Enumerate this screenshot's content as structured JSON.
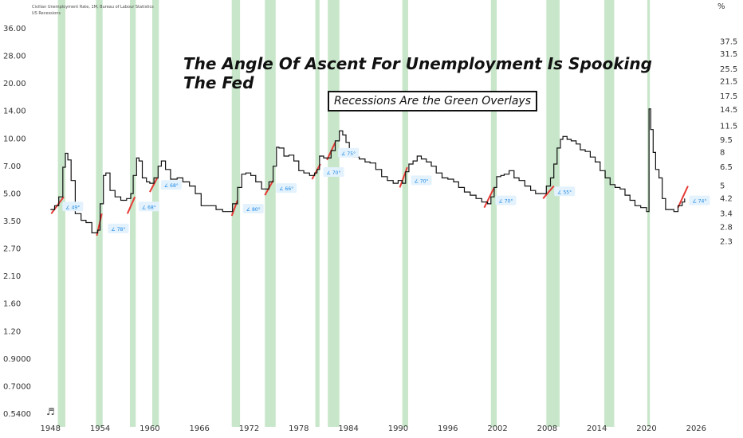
{
  "chart_data": {
    "type": "line",
    "title": "The Angle Of Ascent For Unemployment Is Spooking The Fed",
    "subtitle": "Recessions Are the Green Overlays",
    "legend": [
      "Civilian Unemployment Rate, 1M, Bureau of Labour Statistics",
      "US Recessions"
    ],
    "scale": "log",
    "grid": false,
    "x_ticks": [
      "1948",
      "1954",
      "1960",
      "1966",
      "1972",
      "1978",
      "1984",
      "1990",
      "1996",
      "2002",
      "2008",
      "2014",
      "2020",
      "2026"
    ],
    "left_axis_ticks": [
      "36.00",
      "28.00",
      "20.00",
      "14.00",
      "10.00",
      "7.00",
      "5.00",
      "3.50",
      "2.70",
      "2.10",
      "1.60",
      "1.20",
      "0.9000",
      "0.7000",
      "0.5400"
    ],
    "right_axis_unit": "%",
    "right_axis_ticks": [
      "37.5",
      "31.5",
      "25.5",
      "21.5",
      "17.5",
      "14.5",
      "11.5",
      "9.5",
      "8",
      "6.5",
      "5",
      "4.2",
      "3.4",
      "2.8",
      "2.3"
    ],
    "xlim": [
      1947.3,
      2027.8
    ],
    "recessions": [
      [
        1948.9,
        1949.8
      ],
      [
        1953.5,
        1954.3
      ],
      [
        1957.6,
        1958.3
      ],
      [
        1960.3,
        1961.1
      ],
      [
        1969.9,
        1970.9
      ],
      [
        1973.9,
        1975.2
      ],
      [
        1980.0,
        1980.5
      ],
      [
        1981.5,
        1982.9
      ],
      [
        1990.5,
        1991.2
      ],
      [
        2001.2,
        2001.9
      ],
      [
        2007.9,
        2009.5
      ],
      [
        2014.9,
        2016.1
      ],
      [
        2020.1,
        2020.4
      ]
    ],
    "series": [
      {
        "values": [
          [
            1948.0,
            3.6
          ],
          [
            1948.5,
            3.8
          ],
          [
            1949.0,
            4.3
          ],
          [
            1949.5,
            6.5
          ],
          [
            1949.8,
            7.9
          ],
          [
            1950.1,
            7.2
          ],
          [
            1950.5,
            5.4
          ],
          [
            1951.0,
            3.4
          ],
          [
            1951.7,
            3.1
          ],
          [
            1952.3,
            3.0
          ],
          [
            1953.0,
            2.6
          ],
          [
            1953.5,
            2.6
          ],
          [
            1953.7,
            2.7
          ],
          [
            1954.0,
            3.9
          ],
          [
            1954.4,
            5.8
          ],
          [
            1954.7,
            6.0
          ],
          [
            1955.2,
            4.7
          ],
          [
            1955.8,
            4.3
          ],
          [
            1956.5,
            4.1
          ],
          [
            1957.2,
            4.2
          ],
          [
            1957.7,
            4.5
          ],
          [
            1958.0,
            5.8
          ],
          [
            1958.4,
            7.4
          ],
          [
            1958.7,
            7.1
          ],
          [
            1959.1,
            5.6
          ],
          [
            1959.6,
            5.3
          ],
          [
            1960.0,
            5.2
          ],
          [
            1960.5,
            5.6
          ],
          [
            1961.0,
            6.6
          ],
          [
            1961.4,
            7.1
          ],
          [
            1961.9,
            6.3
          ],
          [
            1962.5,
            5.5
          ],
          [
            1963.3,
            5.6
          ],
          [
            1964.0,
            5.3
          ],
          [
            1964.8,
            5.0
          ],
          [
            1965.5,
            4.5
          ],
          [
            1966.2,
            3.8
          ],
          [
            1967.0,
            3.8
          ],
          [
            1968.0,
            3.6
          ],
          [
            1968.8,
            3.5
          ],
          [
            1969.6,
            3.5
          ],
          [
            1970.0,
            3.9
          ],
          [
            1970.6,
            4.9
          ],
          [
            1971.1,
            5.9
          ],
          [
            1971.6,
            6.0
          ],
          [
            1972.2,
            5.8
          ],
          [
            1972.8,
            5.3
          ],
          [
            1973.5,
            4.8
          ],
          [
            1973.9,
            4.8
          ],
          [
            1974.4,
            5.3
          ],
          [
            1974.9,
            6.6
          ],
          [
            1975.3,
            8.6
          ],
          [
            1975.6,
            8.5
          ],
          [
            1976.2,
            7.6
          ],
          [
            1976.8,
            7.7
          ],
          [
            1977.4,
            7.1
          ],
          [
            1978.0,
            6.2
          ],
          [
            1978.6,
            6.0
          ],
          [
            1979.3,
            5.8
          ],
          [
            1979.9,
            6.0
          ],
          [
            1980.2,
            6.3
          ],
          [
            1980.5,
            7.6
          ],
          [
            1981.0,
            7.4
          ],
          [
            1981.5,
            7.4
          ],
          [
            1981.9,
            8.2
          ],
          [
            1982.4,
            9.4
          ],
          [
            1982.9,
            10.8
          ],
          [
            1983.3,
            10.2
          ],
          [
            1983.7,
            9.2
          ],
          [
            1984.1,
            8.0
          ],
          [
            1984.6,
            7.5
          ],
          [
            1985.3,
            7.3
          ],
          [
            1986.0,
            7.0
          ],
          [
            1986.6,
            6.9
          ],
          [
            1987.3,
            6.3
          ],
          [
            1988.0,
            5.7
          ],
          [
            1988.7,
            5.4
          ],
          [
            1989.4,
            5.2
          ],
          [
            1990.0,
            5.4
          ],
          [
            1990.5,
            5.2
          ],
          [
            1990.9,
            6.1
          ],
          [
            1991.3,
            6.8
          ],
          [
            1991.8,
            7.1
          ],
          [
            1992.3,
            7.6
          ],
          [
            1992.8,
            7.3
          ],
          [
            1993.4,
            7.0
          ],
          [
            1994.0,
            6.6
          ],
          [
            1994.6,
            6.0
          ],
          [
            1995.3,
            5.6
          ],
          [
            1996.0,
            5.5
          ],
          [
            1996.7,
            5.3
          ],
          [
            1997.3,
            4.9
          ],
          [
            1998.0,
            4.6
          ],
          [
            1998.7,
            4.4
          ],
          [
            1999.4,
            4.2
          ],
          [
            2000.1,
            4.0
          ],
          [
            2000.8,
            3.9
          ],
          [
            2001.2,
            4.3
          ],
          [
            2001.6,
            4.9
          ],
          [
            2001.9,
            5.7
          ],
          [
            2002.4,
            5.8
          ],
          [
            2002.8,
            5.9
          ],
          [
            2003.4,
            6.2
          ],
          [
            2004.0,
            5.6
          ],
          [
            2004.6,
            5.4
          ],
          [
            2005.3,
            5.0
          ],
          [
            2006.0,
            4.7
          ],
          [
            2006.6,
            4.5
          ],
          [
            2007.2,
            4.5
          ],
          [
            2007.9,
            5.0
          ],
          [
            2008.4,
            5.6
          ],
          [
            2008.8,
            6.8
          ],
          [
            2009.2,
            8.5
          ],
          [
            2009.6,
            9.6
          ],
          [
            2009.9,
            10.0
          ],
          [
            2010.4,
            9.6
          ],
          [
            2010.9,
            9.4
          ],
          [
            2011.5,
            9.0
          ],
          [
            2012.0,
            8.3
          ],
          [
            2012.6,
            8.1
          ],
          [
            2013.2,
            7.5
          ],
          [
            2013.8,
            7.0
          ],
          [
            2014.4,
            6.2
          ],
          [
            2015.0,
            5.6
          ],
          [
            2015.6,
            5.1
          ],
          [
            2016.2,
            4.9
          ],
          [
            2016.8,
            4.8
          ],
          [
            2017.4,
            4.4
          ],
          [
            2018.0,
            4.1
          ],
          [
            2018.6,
            3.8
          ],
          [
            2019.3,
            3.7
          ],
          [
            2020.0,
            3.5
          ],
          [
            2020.2,
            3.5
          ],
          [
            2020.3,
            14.7
          ],
          [
            2020.5,
            11.0
          ],
          [
            2020.8,
            8.0
          ],
          [
            2021.1,
            6.3
          ],
          [
            2021.5,
            5.6
          ],
          [
            2021.9,
            4.2
          ],
          [
            2022.3,
            3.6
          ],
          [
            2022.8,
            3.6
          ],
          [
            2023.3,
            3.5
          ],
          [
            2023.8,
            3.8
          ],
          [
            2024.3,
            4.0
          ],
          [
            2024.6,
            4.2
          ]
        ]
      }
    ],
    "angle_markers": [
      {
        "x0": 1948.1,
        "y0": 3.4,
        "x1": 1949.6,
        "y1": 4.3,
        "label": "49°"
      },
      {
        "x0": 1953.6,
        "y0": 2.5,
        "x1": 1954.2,
        "y1": 3.4,
        "label": "78°"
      },
      {
        "x0": 1957.3,
        "y0": 3.4,
        "x1": 1958.2,
        "y1": 4.3,
        "label": "68°"
      },
      {
        "x0": 1960.0,
        "y0": 4.6,
        "x1": 1960.9,
        "y1": 5.6,
        "label": "68°"
      },
      {
        "x0": 1969.9,
        "y0": 3.3,
        "x1": 1970.6,
        "y1": 4.1,
        "label": "80°"
      },
      {
        "x0": 1973.9,
        "y0": 4.4,
        "x1": 1974.9,
        "y1": 5.4,
        "label": "66°"
      },
      {
        "x0": 1979.6,
        "y0": 5.5,
        "x1": 1980.6,
        "y1": 6.8,
        "label": "70°"
      },
      {
        "x0": 1981.4,
        "y0": 7.2,
        "x1": 1982.4,
        "y1": 9.2,
        "label": "75°"
      },
      {
        "x0": 1990.2,
        "y0": 4.9,
        "x1": 1991.1,
        "y1": 6.5,
        "label": "70°"
      },
      {
        "x0": 2000.4,
        "y0": 3.7,
        "x1": 2001.6,
        "y1": 4.9,
        "label": "70°"
      },
      {
        "x0": 2007.5,
        "y0": 4.2,
        "x1": 2008.8,
        "y1": 5.0,
        "label": "55°"
      },
      {
        "x0": 2023.8,
        "y0": 3.7,
        "x1": 2025.0,
        "y1": 5.0,
        "label": "74°"
      }
    ],
    "colors": {
      "line": "#111111",
      "recession": "#c8e6c9",
      "marker": "#e53935",
      "label_bg": "#e3f2fd",
      "label_text": "#1e88e5",
      "axis_text": "#333333"
    }
  }
}
